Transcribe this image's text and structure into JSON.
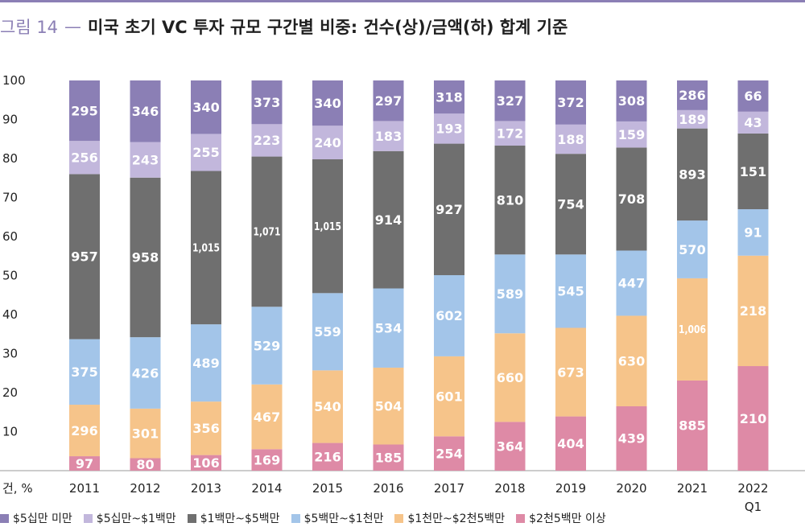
{
  "header": {
    "fig_label": "그림 14",
    "dash": "—",
    "title": "미국 초기 VC 투자 규모 구간별 비중: 건수(상)/금액(하) 합계 기준"
  },
  "colors": {
    "accent": "#8b7fb5",
    "s1": "#8b7fb5",
    "s2": "#c2b7dc",
    "s3": "#6f6f6f",
    "s4": "#a3c5e9",
    "s5": "#f6c48a",
    "s6": "#de8aa6"
  },
  "chart_data": {
    "type": "bar",
    "stacked": true,
    "title": "미국 초기 VC 투자 규모 구간별 비중: 건수(상)/금액(하) 합계 기준",
    "axis_unit_label": "건, %",
    "ylim": [
      0,
      100
    ],
    "yticks": [
      10,
      20,
      30,
      40,
      50,
      60,
      70,
      80,
      90,
      100
    ],
    "grid": false,
    "legend_position": "bottom",
    "categories": [
      "2011",
      "2012",
      "2013",
      "2014",
      "2015",
      "2016",
      "2017",
      "2018",
      "2019",
      "2020",
      "2021",
      "2022"
    ],
    "category_sublabels": [
      "",
      "",
      "",
      "",
      "",
      "",
      "",
      "",
      "",
      "",
      "",
      "Q1"
    ],
    "series": [
      {
        "name": "$2천5백만 이상",
        "color": "#de8aa6",
        "share": [
          3.7,
          3.2,
          4.0,
          5.5,
          7.1,
          6.7,
          8.8,
          12.5,
          13.9,
          16.5,
          23.1,
          26.8
        ],
        "labels": [
          "97",
          "80",
          "106",
          "169",
          "216",
          "185",
          "254",
          "364",
          "404",
          "439",
          "885",
          "210"
        ]
      },
      {
        "name": "$1천만~$2천5백만",
        "color": "#f6c48a",
        "share": [
          13.2,
          12.7,
          13.7,
          16.6,
          18.6,
          19.7,
          20.5,
          22.7,
          22.7,
          23.2,
          26.2,
          28.3
        ],
        "labels": [
          "296",
          "301",
          "356",
          "467",
          "540",
          "504",
          "601",
          "660",
          "673",
          "630",
          "1,006",
          "218"
        ]
      },
      {
        "name": "$5백만~$1천만",
        "color": "#a3c5e9",
        "share": [
          16.8,
          18.3,
          19.8,
          19.9,
          19.8,
          20.3,
          20.8,
          20.2,
          18.8,
          16.7,
          14.8,
          11.9
        ],
        "labels": [
          "375",
          "426",
          "489",
          "529",
          "559",
          "534",
          "602",
          "589",
          "545",
          "447",
          "570",
          "91"
        ]
      },
      {
        "name": "$1백만~$5백만",
        "color": "#6f6f6f",
        "share": [
          42.3,
          40.9,
          39.3,
          38.5,
          34.3,
          35.2,
          33.7,
          27.9,
          25.8,
          26.4,
          23.6,
          19.4
        ],
        "labels": [
          "957",
          "958",
          "1,015",
          "1,071",
          "1,015",
          "914",
          "927",
          "810",
          "754",
          "708",
          "893",
          "151"
        ]
      },
      {
        "name": "$5십만~$1백만",
        "color": "#c2b7dc",
        "share": [
          8.5,
          9.1,
          9.5,
          8.3,
          8.6,
          7.7,
          7.7,
          6.3,
          7.5,
          6.7,
          4.7,
          5.6
        ],
        "labels": [
          "256",
          "243",
          "255",
          "223",
          "240",
          "183",
          "193",
          "172",
          "188",
          "159",
          "189",
          "43"
        ]
      },
      {
        "name": "$5십만 미만",
        "color": "#8b7fb5",
        "share": [
          15.5,
          15.8,
          13.7,
          11.2,
          11.6,
          10.4,
          8.5,
          10.4,
          11.3,
          10.5,
          7.6,
          8.0
        ],
        "labels": [
          "295",
          "346",
          "340",
          "373",
          "340",
          "297",
          "318",
          "327",
          "372",
          "308",
          "286",
          "66"
        ]
      }
    ]
  },
  "legend": [
    {
      "label": "$5십만 미만",
      "color": "#8b7fb5"
    },
    {
      "label": "$5십만~$1백만",
      "color": "#c2b7dc"
    },
    {
      "label": "$1백만~$5백만",
      "color": "#6f6f6f"
    },
    {
      "label": "$5백만~$1천만",
      "color": "#a3c5e9"
    },
    {
      "label": "$1천만~$2천5백만",
      "color": "#f6c48a"
    },
    {
      "label": "$2천5백만 이상",
      "color": "#de8aa6"
    }
  ]
}
